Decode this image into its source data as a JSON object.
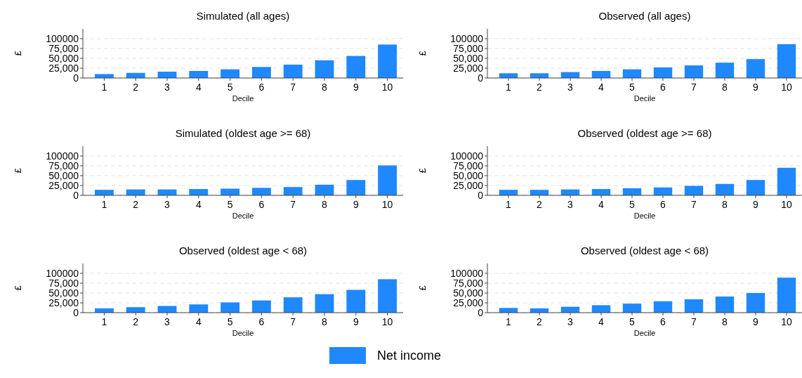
{
  "chart_data": [
    {
      "type": "bar",
      "title": "Simulated (all ages)",
      "xlabel": "Decile",
      "ylabel": "£",
      "categories": [
        "1",
        "2",
        "3",
        "4",
        "5",
        "6",
        "7",
        "8",
        "9",
        "10"
      ],
      "series": [
        {
          "name": "Net income",
          "color": "#1f88fc",
          "values": [
            10000,
            13000,
            16000,
            18000,
            22000,
            28000,
            34000,
            45000,
            56000,
            85000
          ]
        }
      ],
      "ylim": [
        0,
        125000
      ],
      "yticks": [
        {
          "value": 0,
          "label": "0"
        },
        {
          "value": 25000,
          "label": "25,000"
        },
        {
          "value": 50000,
          "label": "50,000"
        },
        {
          "value": 75000,
          "label": "75,000"
        },
        {
          "value": 100000,
          "label": "100000"
        }
      ],
      "grid": "y",
      "legend": "bottom"
    },
    {
      "type": "bar",
      "title": "Observed (all ages)",
      "xlabel": "Decile",
      "ylabel": "£",
      "categories": [
        "1",
        "2",
        "3",
        "4",
        "5",
        "6",
        "7",
        "8",
        "9",
        "10"
      ],
      "series": [
        {
          "name": "Net income",
          "color": "#1f88fc",
          "values": [
            12000,
            12000,
            15000,
            18000,
            22000,
            27000,
            32000,
            39000,
            48000,
            86000
          ]
        }
      ],
      "ylim": [
        0,
        125000
      ],
      "yticks": [
        {
          "value": 0,
          "label": "0"
        },
        {
          "value": 25000,
          "label": "25,000"
        },
        {
          "value": 50000,
          "label": "50,000"
        },
        {
          "value": 75000,
          "label": "75,000"
        },
        {
          "value": 100000,
          "label": "100000"
        }
      ],
      "grid": "y",
      "legend": "bottom"
    },
    {
      "type": "bar",
      "title": "Simulated (oldest age >= 68)",
      "xlabel": "Decile",
      "ylabel": "£",
      "categories": [
        "1",
        "2",
        "3",
        "4",
        "5",
        "6",
        "7",
        "8",
        "9",
        "10"
      ],
      "series": [
        {
          "name": "Net income",
          "color": "#1f88fc",
          "values": [
            14000,
            15000,
            15000,
            16000,
            17000,
            19000,
            21000,
            27000,
            39000,
            76000
          ]
        }
      ],
      "ylim": [
        0,
        125000
      ],
      "yticks": [
        {
          "value": 0,
          "label": "0"
        },
        {
          "value": 25000,
          "label": "25,000"
        },
        {
          "value": 50000,
          "label": "50,000"
        },
        {
          "value": 75000,
          "label": "75,000"
        },
        {
          "value": 100000,
          "label": "100000"
        }
      ],
      "grid": "y",
      "legend": "bottom"
    },
    {
      "type": "bar",
      "title": "Observed (oldest age >= 68)",
      "xlabel": "Decile",
      "ylabel": "£",
      "categories": [
        "1",
        "2",
        "3",
        "4",
        "5",
        "6",
        "7",
        "8",
        "9",
        "10"
      ],
      "series": [
        {
          "name": "Net income",
          "color": "#1f88fc",
          "values": [
            14000,
            14000,
            15000,
            16000,
            18000,
            20000,
            24000,
            29000,
            39000,
            70000
          ]
        }
      ],
      "ylim": [
        0,
        125000
      ],
      "yticks": [
        {
          "value": 0,
          "label": "0"
        },
        {
          "value": 25000,
          "label": "25,000"
        },
        {
          "value": 50000,
          "label": "50,000"
        },
        {
          "value": 75000,
          "label": "75,000"
        },
        {
          "value": 100000,
          "label": "100000"
        }
      ],
      "grid": "y",
      "legend": "bottom"
    },
    {
      "type": "bar",
      "title": "Observed (oldest age < 68)",
      "xlabel": "Decile",
      "ylabel": "£",
      "categories": [
        "1",
        "2",
        "3",
        "4",
        "5",
        "6",
        "7",
        "8",
        "9",
        "10"
      ],
      "series": [
        {
          "name": "Net income",
          "color": "#1f88fc",
          "values": [
            11000,
            14000,
            17000,
            21000,
            26000,
            31000,
            39000,
            47000,
            58000,
            85000
          ]
        }
      ],
      "ylim": [
        0,
        125000
      ],
      "yticks": [
        {
          "value": 0,
          "label": "0"
        },
        {
          "value": 25000,
          "label": "25,000"
        },
        {
          "value": 50000,
          "label": "50,000"
        },
        {
          "value": 75000,
          "label": "75,000"
        },
        {
          "value": 100000,
          "label": "100000"
        }
      ],
      "grid": "y",
      "legend": "bottom"
    },
    {
      "type": "bar",
      "title": "Observed (oldest age < 68)",
      "xlabel": "Decile",
      "ylabel": "£",
      "categories": [
        "1",
        "2",
        "3",
        "4",
        "5",
        "6",
        "7",
        "8",
        "9",
        "10"
      ],
      "series": [
        {
          "name": "Net income",
          "color": "#1f88fc",
          "values": [
            12000,
            11000,
            15000,
            19000,
            23000,
            29000,
            34000,
            41000,
            50000,
            89000
          ]
        }
      ],
      "ylim": [
        0,
        125000
      ],
      "yticks": [
        {
          "value": 0,
          "label": "0"
        },
        {
          "value": 25000,
          "label": "25,000"
        },
        {
          "value": 50000,
          "label": "50,000"
        },
        {
          "value": 75000,
          "label": "75,000"
        },
        {
          "value": 100000,
          "label": "100000"
        }
      ],
      "grid": "y",
      "legend": "bottom"
    }
  ]
}
